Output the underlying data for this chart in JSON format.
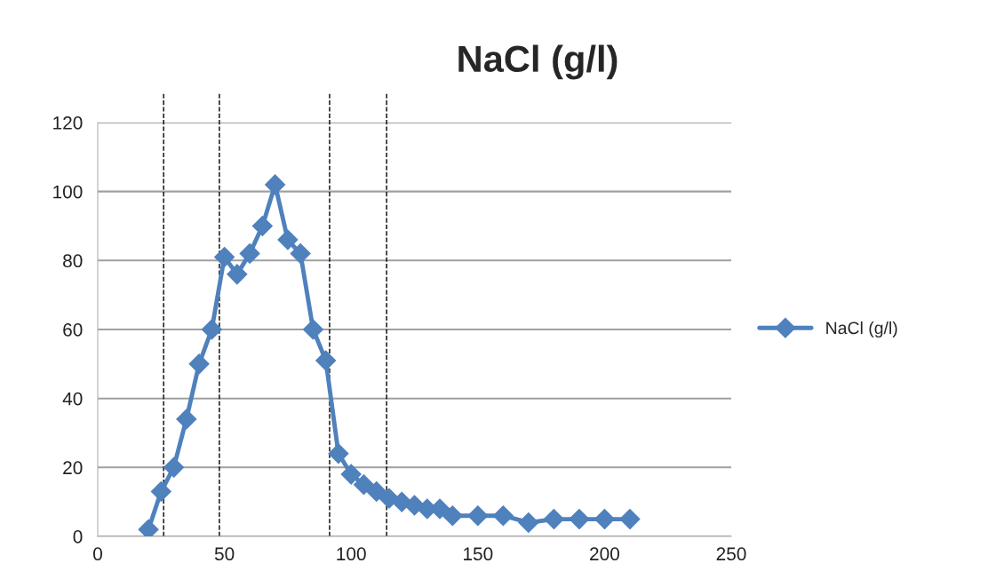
{
  "chart_data": {
    "type": "line",
    "title": "NaCl (g/l)",
    "x": [
      20,
      25,
      30,
      35,
      40,
      45,
      50,
      55,
      60,
      65,
      70,
      75,
      80,
      85,
      90,
      95,
      100,
      105,
      110,
      115,
      120,
      125,
      130,
      135,
      140,
      150,
      160,
      170,
      180,
      190,
      200,
      210
    ],
    "series": [
      {
        "name": "NaCl (g/l)",
        "color": "#4f81bd",
        "values": [
          2,
          13,
          20,
          34,
          50,
          60,
          81,
          76,
          82,
          90,
          102,
          86,
          82,
          60,
          51,
          24,
          18,
          15,
          13,
          11,
          10,
          9,
          8,
          8,
          6,
          6,
          6,
          4,
          5,
          5,
          5,
          5
        ]
      }
    ],
    "xlim": [
      0,
      250
    ],
    "xticks": [
      0,
      50,
      100,
      150,
      200,
      250
    ],
    "ylim": [
      0,
      120
    ],
    "yticks": [
      0,
      20,
      40,
      60,
      80,
      100,
      120
    ],
    "grid": "y",
    "legend": "right",
    "marker": "diamond",
    "line_style": "solid",
    "ref_lines": [
      {
        "axis": "x",
        "value": 26,
        "color": "#000000",
        "line_style": "dashed"
      },
      {
        "axis": "x",
        "value": 48,
        "color": "#000000",
        "line_style": "dashed"
      },
      {
        "axis": "x",
        "value": 91.5,
        "color": "#000000",
        "line_style": "dashed"
      },
      {
        "axis": "x",
        "value": 114,
        "color": "#000000",
        "line_style": "dashed"
      }
    ]
  }
}
